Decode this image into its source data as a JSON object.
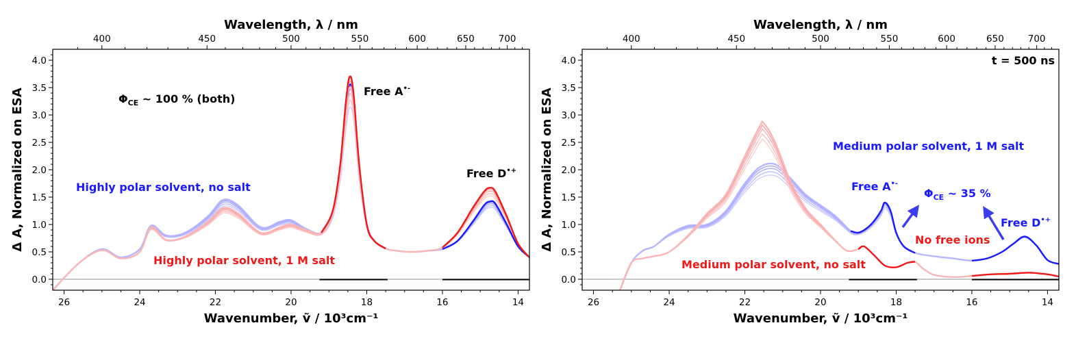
{
  "chart_data": [
    {
      "type": "line",
      "panel": "left",
      "xlabel": "Wavenumber, ṽ / 10³cm⁻¹",
      "x2label": "Wavelength, λ / nm",
      "ylabel": "Δ A, Normalized on ESA",
      "xlim": [
        26.3,
        13.7
      ],
      "ylim": [
        -0.2,
        4.2
      ],
      "xticks": [
        "26",
        "24",
        "22",
        "20",
        "18",
        "16",
        "14"
      ],
      "x2ticks": [
        {
          "label": "400",
          "nm": 400
        },
        {
          "label": "450",
          "nm": 450
        },
        {
          "label": "500",
          "nm": 500
        },
        {
          "label": "550",
          "nm": 550
        },
        {
          "label": "600",
          "nm": 600
        },
        {
          "label": "650",
          "nm": 650
        },
        {
          "label": "700",
          "nm": 700
        }
      ],
      "yticks": [
        "0.0",
        "0.5",
        "1.0",
        "1.5",
        "2.0",
        "2.5",
        "3.0",
        "3.5",
        "4.0"
      ],
      "series": [
        {
          "name": "Highly polar solvent, no salt",
          "color": "#1a1aff",
          "x": [
            26.3,
            25.6,
            25.0,
            24.5,
            24.0,
            23.7,
            23.3,
            22.8,
            22.2,
            21.8,
            21.4,
            20.8,
            20.3,
            20.0,
            19.6,
            19.2,
            18.9,
            18.7,
            18.55,
            18.45,
            18.35,
            18.2,
            18.0,
            17.8,
            17.5,
            17.2,
            16.8,
            16.4,
            16.0,
            15.6,
            15.2,
            14.9,
            14.75,
            14.6,
            14.3,
            14.0,
            13.7
          ],
          "y": [
            -0.2,
            0.3,
            0.55,
            0.4,
            0.55,
            0.98,
            0.8,
            0.85,
            1.15,
            1.45,
            1.35,
            0.95,
            1.05,
            1.08,
            0.92,
            0.85,
            1.2,
            2.0,
            3.1,
            3.55,
            3.3,
            2.0,
            1.0,
            0.7,
            0.56,
            0.52,
            0.5,
            0.52,
            0.55,
            0.7,
            1.05,
            1.35,
            1.42,
            1.38,
            1.0,
            0.6,
            0.4
          ]
        },
        {
          "name": "Highly polar solvent, 1 M salt",
          "color": "#ee1a1a",
          "x": [
            26.3,
            25.6,
            25.0,
            24.5,
            24.0,
            23.7,
            23.3,
            22.8,
            22.2,
            21.8,
            21.4,
            20.8,
            20.3,
            20.0,
            19.6,
            19.2,
            18.9,
            18.7,
            18.55,
            18.45,
            18.35,
            18.2,
            18.0,
            17.8,
            17.5,
            17.2,
            16.8,
            16.4,
            16.0,
            15.6,
            15.2,
            14.9,
            14.75,
            14.6,
            14.3,
            14.0,
            13.7
          ],
          "y": [
            -0.2,
            0.3,
            0.53,
            0.38,
            0.5,
            0.95,
            0.72,
            0.78,
            1.05,
            1.3,
            1.2,
            0.85,
            0.95,
            1.0,
            0.9,
            0.85,
            1.25,
            2.1,
            3.25,
            3.7,
            3.4,
            2.1,
            1.0,
            0.7,
            0.56,
            0.52,
            0.5,
            0.52,
            0.58,
            0.85,
            1.3,
            1.6,
            1.67,
            1.6,
            1.15,
            0.65,
            0.4
          ]
        }
      ],
      "annotations": [
        {
          "text": "Φ",
          "sub": "CE",
          "rest": " ~ 100 % (both)",
          "color": "#000000"
        },
        {
          "text": "Free A",
          "sup": "•-",
          "color": "#000000"
        },
        {
          "text": "Free D",
          "sup": "•+",
          "color": "#000000"
        },
        {
          "text": "Highly polar solvent, no salt",
          "color": "#1a1aff"
        },
        {
          "text": "Highly polar solvent, 1 M salt",
          "color": "#ee1a1a"
        }
      ]
    },
    {
      "type": "line",
      "panel": "right",
      "xlabel": "Wavenumber, ṽ / 10³cm⁻¹",
      "x2label": "Wavelength, λ / nm",
      "ylabel": "Δ A, Normalized on ESA",
      "xlim": [
        26.3,
        13.7
      ],
      "ylim": [
        -0.2,
        4.2
      ],
      "xticks": [
        "26",
        "24",
        "22",
        "20",
        "18",
        "16",
        "14"
      ],
      "x2ticks": [
        {
          "label": "400",
          "nm": 400
        },
        {
          "label": "450",
          "nm": 450
        },
        {
          "label": "500",
          "nm": 500
        },
        {
          "label": "550",
          "nm": 550
        },
        {
          "label": "600",
          "nm": 600
        },
        {
          "label": "650",
          "nm": 650
        },
        {
          "label": "700",
          "nm": 700
        }
      ],
      "yticks": [
        "0.0",
        "0.5",
        "1.0",
        "1.5",
        "2.0",
        "2.5",
        "3.0",
        "3.5",
        "4.0"
      ],
      "time_label": "t = 500 ns",
      "series": [
        {
          "name": "Medium polar solvent, 1 M salt",
          "color": "#1a1aff",
          "x": [
            25.3,
            25.0,
            24.7,
            24.4,
            24.0,
            23.5,
            23.0,
            22.5,
            22.0,
            21.6,
            21.2,
            20.8,
            20.4,
            20.0,
            19.6,
            19.2,
            19.0,
            18.8,
            18.6,
            18.4,
            18.3,
            18.15,
            18.0,
            17.8,
            17.5,
            17.0,
            16.5,
            16.0,
            15.6,
            15.2,
            14.9,
            14.6,
            14.3,
            14.0,
            13.7
          ],
          "y": [
            -0.2,
            0.3,
            0.52,
            0.6,
            0.82,
            0.98,
            1.0,
            1.25,
            1.75,
            2.05,
            2.1,
            1.85,
            1.55,
            1.35,
            1.15,
            0.88,
            0.85,
            0.92,
            1.05,
            1.25,
            1.4,
            1.25,
            0.85,
            0.6,
            0.48,
            0.42,
            0.38,
            0.34,
            0.38,
            0.5,
            0.65,
            0.78,
            0.62,
            0.35,
            0.28
          ]
        },
        {
          "name": "Medium polar solvent, no salt",
          "color": "#ee1a1a",
          "x": [
            25.3,
            25.0,
            24.7,
            24.4,
            24.0,
            23.5,
            23.0,
            22.5,
            22.0,
            21.6,
            21.5,
            21.2,
            20.8,
            20.4,
            20.0,
            19.6,
            19.3,
            19.0,
            18.85,
            18.6,
            18.3,
            18.0,
            17.7,
            17.5,
            17.3,
            17.0,
            16.5,
            16.0,
            15.5,
            15.0,
            14.5,
            14.0,
            13.7
          ],
          "y": [
            -0.2,
            0.3,
            0.38,
            0.42,
            0.5,
            0.8,
            1.2,
            1.55,
            2.25,
            2.8,
            2.85,
            2.5,
            1.8,
            1.3,
            1.0,
            0.7,
            0.52,
            0.55,
            0.6,
            0.45,
            0.25,
            0.22,
            0.3,
            0.32,
            0.2,
            0.08,
            0.04,
            0.06,
            0.09,
            0.1,
            0.12,
            0.09,
            0.05
          ]
        }
      ],
      "annotations": [
        {
          "text": "Medium polar solvent, 1 M salt",
          "color": "#1a1aff"
        },
        {
          "text": "Free A",
          "sup": "•-",
          "color": "#1a1aff"
        },
        {
          "text": "Φ",
          "sub": "CE",
          "rest": " ~ 35 %",
          "color": "#1a1aff"
        },
        {
          "text": "Free D",
          "sup": "•+",
          "color": "#1a1aff"
        },
        {
          "text": "No free ions",
          "color": "#ee1a1a"
        },
        {
          "text": "Medium polar solvent, no salt",
          "color": "#ee1a1a"
        }
      ]
    }
  ]
}
